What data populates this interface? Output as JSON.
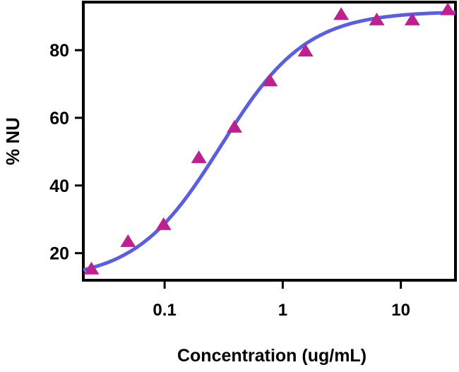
{
  "chart_data": {
    "type": "scatter",
    "title": "",
    "xlabel": "Concentration (ug/mL)",
    "ylabel": "% NU",
    "x_scale": "log",
    "xlim": [
      0.0205,
      29
    ],
    "ylim": [
      12,
      94.2
    ],
    "x_ticks": [
      0.1,
      1,
      10
    ],
    "x_tick_labels": [
      "0.1",
      "1",
      "10"
    ],
    "y_ticks": [
      20,
      40,
      60,
      80
    ],
    "y_tick_labels": [
      "20",
      "40",
      "60",
      "80"
    ],
    "grid": false,
    "series": [
      {
        "marker": "triangle",
        "color": "#c0208f",
        "x": [
          0.024,
          0.049,
          0.098,
          0.195,
          0.39,
          0.78,
          1.56,
          3.125,
          6.25,
          12.5,
          25
        ],
        "y": [
          15.4,
          23.5,
          28.5,
          48.3,
          57.3,
          71.0,
          79.8,
          90.6,
          89.0,
          89.0,
          92.0
        ]
      }
    ],
    "fit_curve": {
      "model": "4PL",
      "color": "#5a5ee0",
      "bottom": 12,
      "top": 91.5,
      "ec50": 0.3,
      "hill": 1.2
    }
  }
}
